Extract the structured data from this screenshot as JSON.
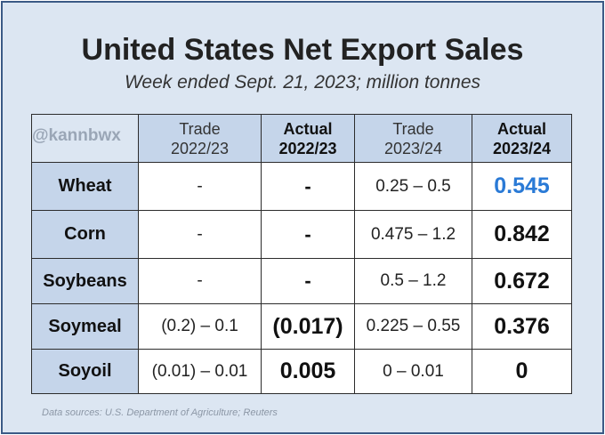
{
  "title": "United States Net Export Sales",
  "subtitle": "Week ended Sept. 21, 2023; million tonnes",
  "watermark": "@kannbwx",
  "columns": [
    {
      "line1": "Trade",
      "line2": "2022/23"
    },
    {
      "line1": "Actual",
      "line2": "2022/23"
    },
    {
      "line1": "Trade",
      "line2": "2023/24"
    },
    {
      "line1": "Actual",
      "line2": "2023/24"
    }
  ],
  "rows": [
    {
      "label": "Wheat",
      "trade_2223": "-",
      "actual_2223": "-",
      "trade_2324": "0.25 – 0.5",
      "actual_2324": "0.545"
    },
    {
      "label": "Corn",
      "trade_2223": "-",
      "actual_2223": "-",
      "trade_2324": "0.475 – 1.2",
      "actual_2324": "0.842"
    },
    {
      "label": "Soybeans",
      "trade_2223": "-",
      "actual_2223": "-",
      "trade_2324": "0.5 – 1.2",
      "actual_2324": "0.672"
    },
    {
      "label": "Soymeal",
      "trade_2223": "(0.2) – 0.1",
      "actual_2223": "(0.017)",
      "trade_2324": "0.225 – 0.55",
      "actual_2324": "0.376"
    },
    {
      "label": "Soyoil",
      "trade_2223": "(0.01) – 0.01",
      "actual_2223": "0.005",
      "trade_2324": "0 – 0.01",
      "actual_2324": "0"
    }
  ],
  "highlight_color": "#2a7ad6",
  "header_bg": "#c5d5ea",
  "panel_bg": "#dce6f2",
  "source_note": "Data sources: U.S. Department of Agriculture; Reuters"
}
